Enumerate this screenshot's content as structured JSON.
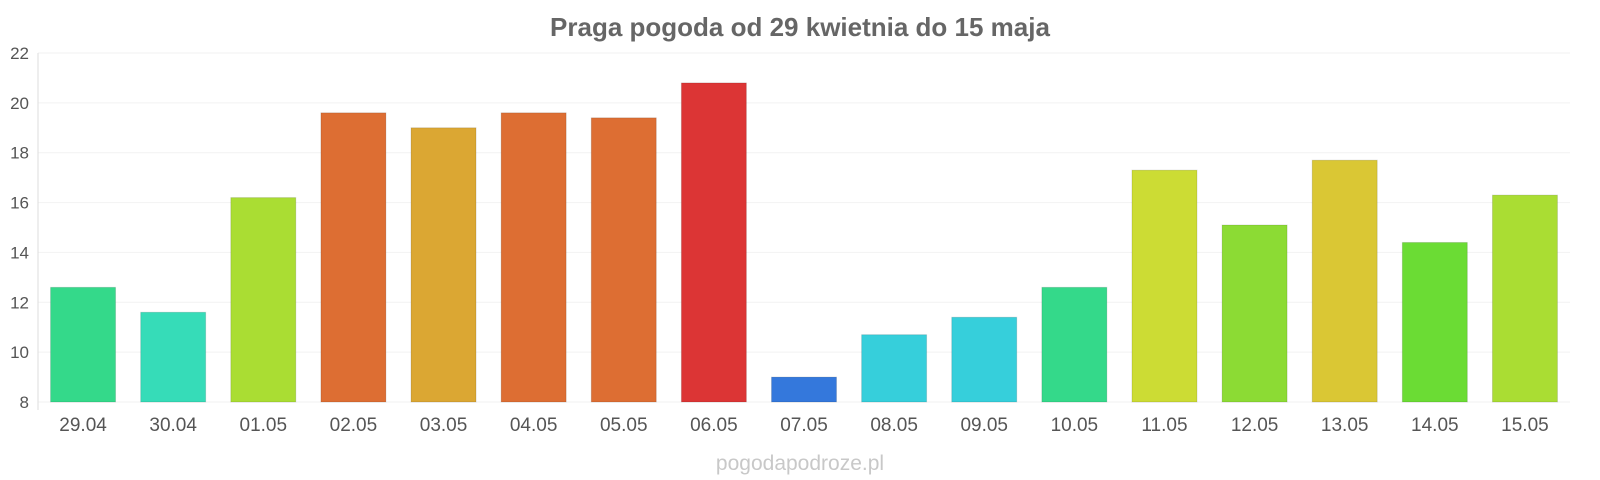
{
  "chart_data": {
    "type": "bar",
    "title": "Praga pogoda od 29 kwietnia do 15 maja",
    "categories": [
      "29.04",
      "30.04",
      "01.05",
      "02.05",
      "03.05",
      "04.05",
      "05.05",
      "06.05",
      "07.05",
      "08.05",
      "09.05",
      "10.05",
      "11.05",
      "12.05",
      "13.05",
      "14.05",
      "15.05"
    ],
    "values": [
      12.6,
      11.6,
      16.2,
      19.6,
      19.0,
      19.6,
      19.4,
      20.8,
      9.0,
      10.7,
      11.4,
      12.6,
      17.3,
      15.1,
      17.7,
      14.4,
      16.3
    ],
    "colors": [
      "#34d98a",
      "#36dcb8",
      "#aadd33",
      "#dd6e33",
      "#dba733",
      "#dd6e33",
      "#dd6e33",
      "#dc3535",
      "#3478dc",
      "#36cfdb",
      "#36cfdb",
      "#34d98a",
      "#ccdc34",
      "#8cdb34",
      "#dac734",
      "#6bdc34",
      "#aadd33"
    ],
    "ylim": [
      8,
      22
    ],
    "yticks": [
      8,
      10,
      12,
      14,
      16,
      18,
      20,
      22
    ],
    "xlabel": "",
    "ylabel": "",
    "grid": true
  },
  "watermark": "pogodapodroze.pl"
}
